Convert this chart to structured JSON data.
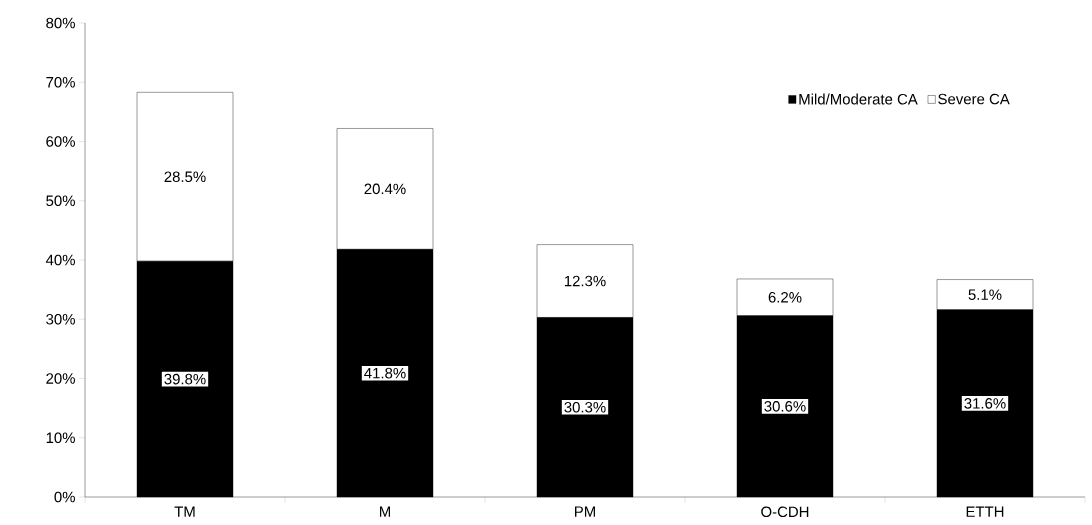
{
  "chart_data": {
    "type": "bar",
    "stacked": true,
    "categories": [
      "TM",
      "M",
      "PM",
      "O-CDH",
      "ETTH"
    ],
    "series": [
      {
        "name": "Mild/Moderate CA",
        "color": "#000000",
        "values": [
          39.8,
          41.8,
          30.3,
          30.6,
          31.6
        ],
        "value_labels": [
          "39.8%",
          "41.8%",
          "30.3%",
          "30.6%",
          "31.6%"
        ]
      },
      {
        "name": "Severe CA",
        "color": "#ffffff",
        "values": [
          28.5,
          20.4,
          12.3,
          6.2,
          5.1
        ],
        "value_labels": [
          "28.5%",
          "20.4%",
          "12.3%",
          "6.2%",
          "5.1%"
        ]
      }
    ],
    "ylim": [
      0,
      80
    ],
    "yticks": [
      {
        "value": 0,
        "label": "0%"
      },
      {
        "value": 10,
        "label": "10%"
      },
      {
        "value": 20,
        "label": "20%"
      },
      {
        "value": 30,
        "label": "30%"
      },
      {
        "value": 40,
        "label": "40%"
      },
      {
        "value": 50,
        "label": "50%"
      },
      {
        "value": 60,
        "label": "60%"
      },
      {
        "value": 70,
        "label": "70%"
      },
      {
        "value": 80,
        "label": "80%"
      }
    ],
    "grid": false,
    "legend": "top right"
  }
}
